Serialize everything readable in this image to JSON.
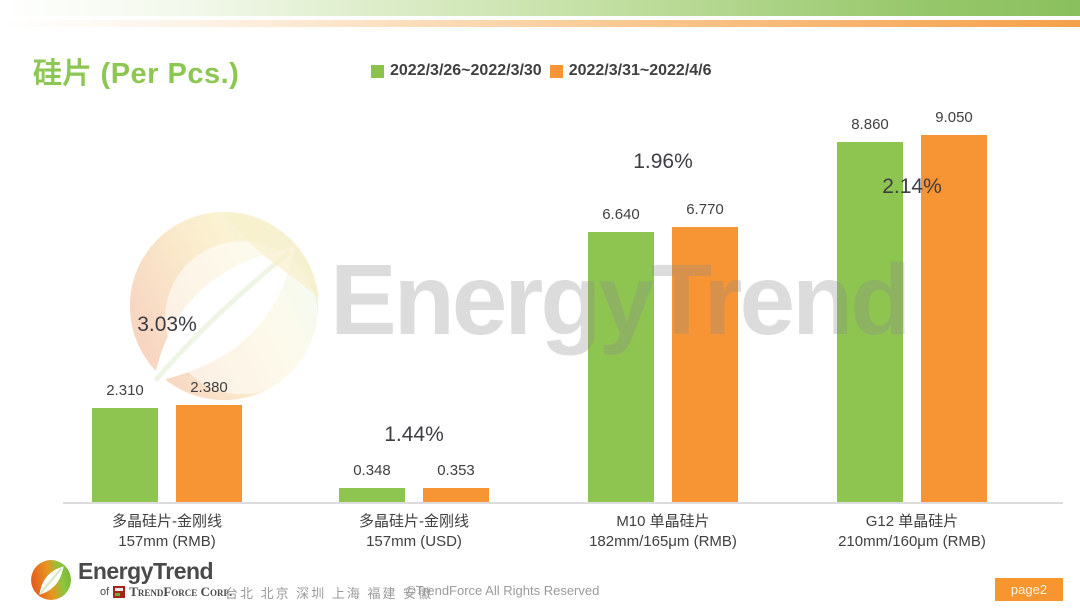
{
  "header": {
    "title": "硅片 (Per Pcs.)"
  },
  "legend": [
    {
      "label": "2022/3/26~2022/3/30",
      "color": "#8dc14d"
    },
    {
      "label": "2022/3/31~2022/4/6",
      "color": "#f79433"
    }
  ],
  "chart_data": {
    "type": "bar",
    "title": "硅片 (Per Pcs.)",
    "categories": [
      [
        "多晶硅片-金刚线",
        "157mm (RMB)"
      ],
      [
        "多晶硅片-金刚线",
        "157mm (USD)"
      ],
      [
        "M10 单晶硅片",
        "182mm/165μm (RMB)"
      ],
      [
        "G12 单晶硅片",
        "210mm/160μm  (RMB)"
      ]
    ],
    "series": [
      {
        "name": "2022/3/26~2022/3/30",
        "color": "#8ec551",
        "values": [
          2.31,
          0.348,
          6.64,
          8.86
        ],
        "labels": [
          "2.310",
          "0.348",
          "6.640",
          "8.860"
        ]
      },
      {
        "name": "2022/3/31~2022/4/6",
        "color": "#f79433",
        "values": [
          2.38,
          0.353,
          6.77,
          9.05
        ],
        "labels": [
          "2.380",
          "0.353",
          "6.770",
          "9.050"
        ]
      }
    ],
    "change_labels": [
      "3.03%",
      "1.44%",
      "1.96%",
      "2.14%"
    ],
    "xlabel": "",
    "ylabel": "",
    "ylim": [
      0,
      10
    ],
    "grid": false,
    "legend_position": "top"
  },
  "watermark": {
    "text": "EnergyTrend"
  },
  "footer": {
    "logo_text": "EnergyTrend",
    "logo_sub_prefix": "of",
    "logo_sub_brand": "TrendForce Corp.",
    "cities": "台北 北京 深圳 上海 福建 安徽",
    "copyright": "©TrendForce All Rights Reserved",
    "page_badge": "page2"
  }
}
